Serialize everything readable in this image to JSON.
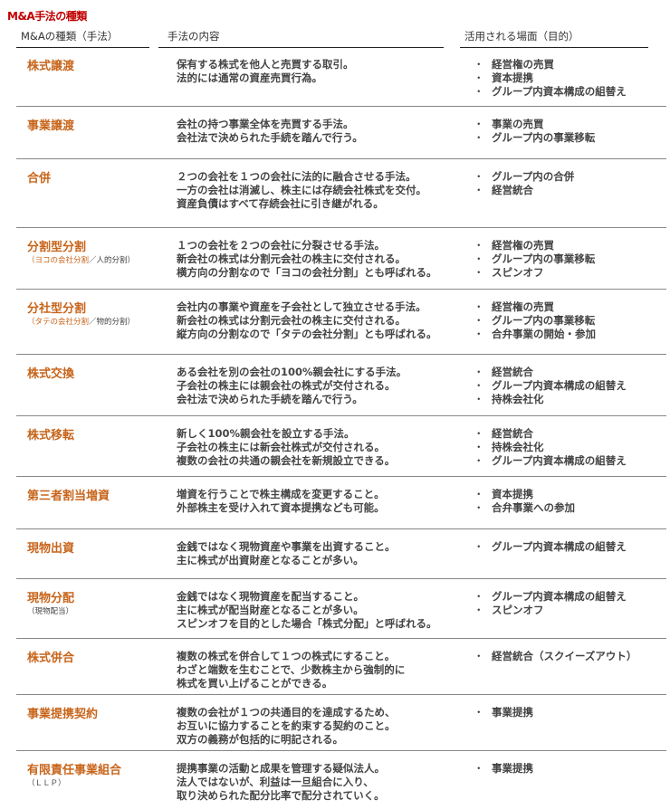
{
  "title": "M&A手法の種類",
  "headers": [
    "M&Aの種類（手法）",
    "手法の内容",
    "活用される場面（目的）"
  ],
  "colors": {
    "title": "#c00000",
    "method_name": "#c8651b"
  },
  "rows": [
    {
      "name": "株式譲渡",
      "sub_orange": "",
      "sub_rest": "",
      "desc": [
        "保有する株式を他人と売買する取引。",
        "法的には通常の資産売買行為。"
      ],
      "uses": [
        "経営権の売買",
        "資本提携",
        "グループ内資本構成の組替え"
      ]
    },
    {
      "name": "事業譲渡",
      "sub_orange": "",
      "sub_rest": "",
      "desc": [
        "会社の持つ事業全体を売買する手法。",
        "会社法で決められた手続を踏んで行う。"
      ],
      "uses": [
        "事業の売買",
        "グループ内の事業移転"
      ]
    },
    {
      "name": "合併",
      "sub_orange": "",
      "sub_rest": "",
      "desc": [
        "２つの会社を１つの会社に法的に融合させる手法。",
        "一方の会社は消滅し、株主には存続会社株式を交付。",
        "資産負債はすべて存続会社に引き継がれる。"
      ],
      "uses": [
        "グループ内の合併",
        "経営統合"
      ]
    },
    {
      "name": "分割型分割",
      "sub_orange": "（ヨコの会社分割",
      "sub_rest": "／人的分割）",
      "desc": [
        "１つの会社を２つの会社に分裂させる手法。",
        "新会社の株式は分割元会社の株主に交付される。",
        "横方向の分割なので「ヨコの会社分割」とも呼ばれる。"
      ],
      "uses": [
        "経営権の売買",
        "グループ内の事業移転",
        "スピンオフ"
      ]
    },
    {
      "name": "分社型分割",
      "sub_orange": "（タテの会社分割",
      "sub_rest": "／物的分割）",
      "desc": [
        "会社内の事業や資産を子会社として独立させる手法。",
        "新会社の株式は分割元会社の株主に交付される。",
        "縦方向の分割なので「タテの会社分割」とも呼ばれる。"
      ],
      "uses": [
        "経営権の売買",
        "グループ内の事業移転",
        "合弁事業の開始・参加"
      ]
    },
    {
      "name": "株式交換",
      "sub_orange": "",
      "sub_rest": "",
      "desc": [
        "ある会社を別の会社の100%親会社にする手法。",
        "子会社の株主には親会社の株式が交付される。",
        "会社法で決められた手続を踏んで行う。"
      ],
      "uses": [
        "経営統合",
        "グループ内資本構成の組替え",
        "持株会社化"
      ]
    },
    {
      "name": "株式移転",
      "sub_orange": "",
      "sub_rest": "",
      "desc": [
        "新しく100%親会社を設立する手法。",
        "子会社の株主には新会社株式が交付される。",
        "複数の会社の共通の親会社を新規設立できる。"
      ],
      "uses": [
        "経営統合",
        "持株会社化",
        "グループ内資本構成の組替え"
      ]
    },
    {
      "name": "第三者割当増資",
      "sub_orange": "",
      "sub_rest": "",
      "desc": [
        "増資を行うことで株主構成を変更すること。",
        "外部株主を受け入れて資本提携なども可能。"
      ],
      "uses": [
        "資本提携",
        "合弁事業への参加"
      ]
    },
    {
      "name": "現物出資",
      "sub_orange": "",
      "sub_rest": "",
      "desc": [
        "金銭ではなく現物資産や事業を出資すること。",
        "主に株式が出資財産となることが多い。"
      ],
      "uses": [
        "グループ内資本構成の組替え"
      ]
    },
    {
      "name": "現物分配",
      "sub_orange": "",
      "sub_rest": "（現物配当）",
      "desc": [
        "金銭ではなく現物資産を配当すること。",
        "主に株式が配当財産となることが多い。",
        "スピンオフを目的とした場合「株式分配」と呼ばれる。"
      ],
      "uses": [
        "グループ内資本構成の組替え",
        "スピンオフ"
      ]
    },
    {
      "name": "株式併合",
      "sub_orange": "",
      "sub_rest": "",
      "desc": [
        "複数の株式を併合して１つの株式にすること。",
        "わざと端数を生むことで、少数株主から強制的に",
        "株式を買い上げることができる。"
      ],
      "uses": [
        "経営統合（スクイーズアウト）"
      ]
    },
    {
      "name": "事業提携契約",
      "sub_orange": "",
      "sub_rest": "",
      "desc": [
        "複数の会社が１つの共通目的を達成するため、",
        "お互いに協力することを約束する契約のこと。",
        "双方の義務が包括的に明記される。"
      ],
      "uses": [
        "事業提携"
      ]
    },
    {
      "name": "有限責任事業組合",
      "sub_orange": "",
      "sub_rest": "（ＬＬＰ）",
      "desc": [
        "提携事業の活動と成果を管理する疑似法人。",
        "法人ではないが、利益は一旦組合に入り、",
        "取り決められた配分比率で配分されていく。"
      ],
      "uses": [
        "事業提携"
      ]
    }
  ]
}
